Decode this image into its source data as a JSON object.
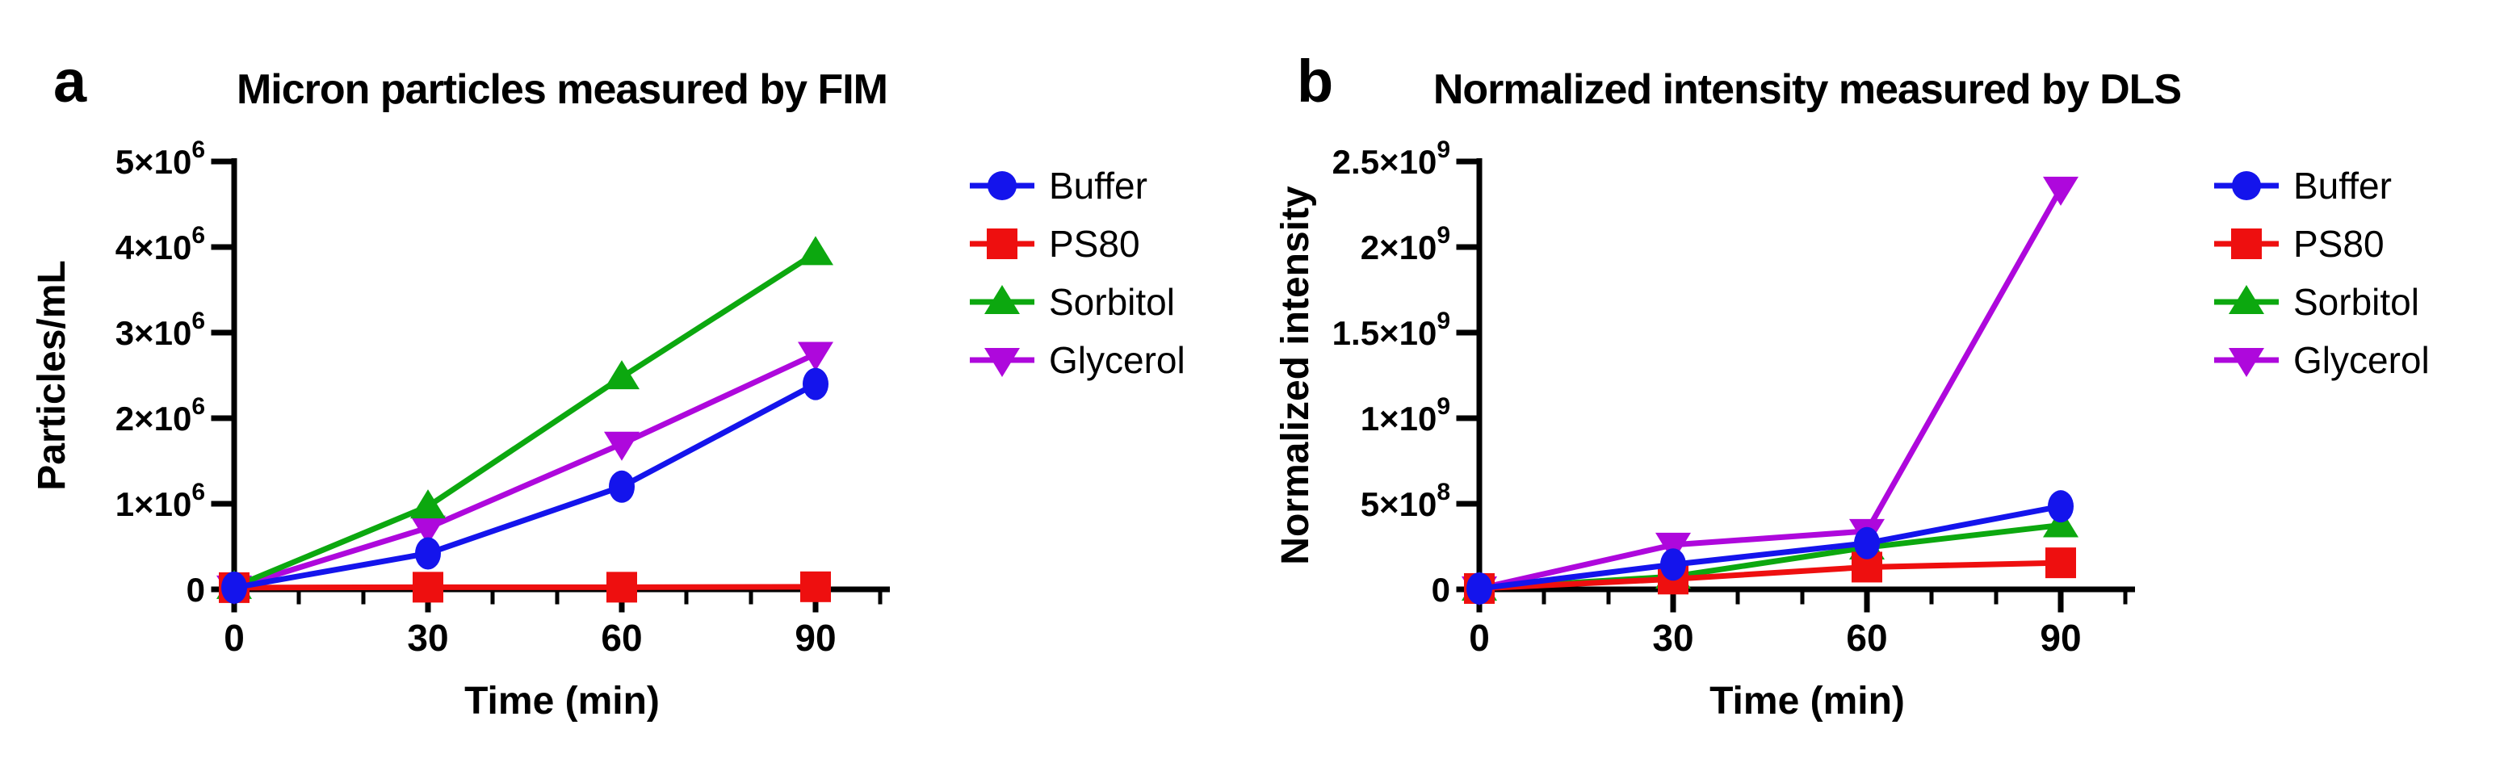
{
  "figure": {
    "background": "#ffffff",
    "panel_letters": [
      "a",
      "b"
    ]
  },
  "chart_data": [
    {
      "type": "line",
      "panel_letter": "a",
      "title": "Micron particles measured by FIM",
      "xlabel": "Time (min)",
      "ylabel": "Particles/mL",
      "x": [
        0,
        30,
        60,
        90
      ],
      "xlim": [
        0,
        101
      ],
      "x_major_ticks": [
        0,
        30,
        60,
        90
      ],
      "x_minor_tick_step": 10,
      "ylim": [
        0,
        5000000
      ],
      "y_major_tick_count": 5,
      "y_tick_labels": [
        {
          "base": "0",
          "sup": ""
        },
        {
          "base": "1×10",
          "sup": "6"
        },
        {
          "base": "2×10",
          "sup": "6"
        },
        {
          "base": "3×10",
          "sup": "6"
        },
        {
          "base": "4×10",
          "sup": "6"
        },
        {
          "base": "5×10",
          "sup": "6"
        }
      ],
      "grid": false,
      "legend_position": "right",
      "series": [
        {
          "name": "Buffer",
          "marker": "circle",
          "color": "#1414EC",
          "values": [
            20000,
            420000,
            1200000,
            2400000
          ]
        },
        {
          "name": "PS80",
          "marker": "square",
          "color": "#EE0F0F",
          "values": [
            20000,
            25000,
            25000,
            30000
          ]
        },
        {
          "name": "Sorbitol",
          "marker": "triangle-up",
          "color": "#0CA80F",
          "values": [
            30000,
            970000,
            2480000,
            3930000
          ]
        },
        {
          "name": "Glycerol",
          "marker": "triangle-down",
          "color": "#AE08DC",
          "values": [
            20000,
            720000,
            1700000,
            2750000
          ]
        }
      ]
    },
    {
      "type": "line",
      "panel_letter": "b",
      "title": "Normalized intensity measured by DLS",
      "xlabel": "Time (min)",
      "ylabel": "Normalized intensity",
      "x": [
        0,
        30,
        60,
        90
      ],
      "xlim": [
        0,
        101
      ],
      "x_major_ticks": [
        0,
        30,
        60,
        90
      ],
      "x_minor_tick_step": 10,
      "ylim": [
        0,
        2500000000
      ],
      "y_major_tick_count": 5,
      "y_tick_labels": [
        {
          "base": "0",
          "sup": ""
        },
        {
          "base": "5×10",
          "sup": "8"
        },
        {
          "base": "1×10",
          "sup": "9"
        },
        {
          "base": "1.5×10",
          "sup": "9"
        },
        {
          "base": "2×10",
          "sup": "9"
        },
        {
          "base": "2.5×10",
          "sup": "9"
        }
      ],
      "grid": false,
      "legend_position": "right",
      "series": [
        {
          "name": "Buffer",
          "marker": "circle",
          "color": "#1414EC",
          "values": [
            5000000,
            145000000,
            270000000,
            485000000
          ]
        },
        {
          "name": "PS80",
          "marker": "square",
          "color": "#EE0F0F",
          "values": [
            5000000,
            60000000,
            130000000,
            155000000
          ]
        },
        {
          "name": "Sorbitol",
          "marker": "triangle-up",
          "color": "#0CA80F",
          "values": [
            5000000,
            75000000,
            245000000,
            375000000
          ]
        },
        {
          "name": "Glycerol",
          "marker": "triangle-down",
          "color": "#AE08DC",
          "values": [
            5000000,
            260000000,
            340000000,
            2340000000
          ]
        }
      ]
    }
  ]
}
